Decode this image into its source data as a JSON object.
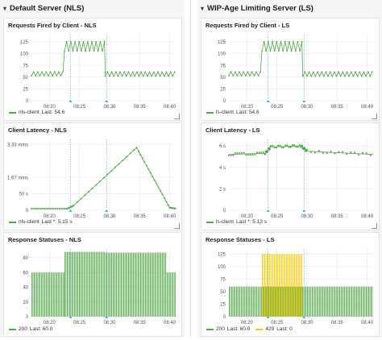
{
  "colors": {
    "green": "#56a64b",
    "yellow": "#f2cc0c",
    "marker": "#4aa5e0",
    "grid": "#ececec",
    "axis": "#555555"
  },
  "left": {
    "row_title": "Default Server (NLS)",
    "panels": [
      {
        "title": "Requests Fired by Client - NLS",
        "legend": [
          {
            "name": "nls-client",
            "last_label": "Last: 54.6",
            "color": "#56a64b"
          }
        ]
      },
      {
        "title": "Client Latency - NLS",
        "legend": [
          {
            "name": "nls-client",
            "last_label": "Last *: 5.15 s",
            "color": "#56a64b"
          }
        ]
      },
      {
        "title": "Response Statuses - NLS",
        "legend": [
          {
            "name": "200",
            "last_label": "Last: 60.0",
            "color": "#56a64b"
          }
        ]
      }
    ]
  },
  "right": {
    "row_title": "WIP-Age Limiting Server (LS)",
    "panels": [
      {
        "title": "Requests Fired by Client - LS",
        "legend": [
          {
            "name": "ls-client",
            "last_label": "Last: 54.6",
            "color": "#56a64b"
          }
        ]
      },
      {
        "title": "Client Latency - LS",
        "legend": [
          {
            "name": "ls-client",
            "last_label": "Last *: 5.13 s",
            "color": "#56a64b"
          }
        ]
      },
      {
        "title": "Response Statuses - LS",
        "legend": [
          {
            "name": "200",
            "last_label": "Last: 60.0",
            "color": "#56a64b"
          },
          {
            "name": "429",
            "last_label": "Last: 0",
            "color": "#f2cc0c"
          }
        ]
      }
    ]
  },
  "chart_data": [
    {
      "id": "req-nls",
      "type": "line",
      "title": "Requests Fired by Client - NLS",
      "x_ticks": [
        "08:20",
        "08:25",
        "08:30",
        "08:35",
        "08:40"
      ],
      "x_range": [
        0,
        24
      ],
      "y_ticks": [
        "0",
        "25",
        "50",
        "75",
        "100",
        "125"
      ],
      "ylim": [
        0,
        140
      ],
      "series": [
        {
          "name": "nls-client",
          "color": "#56a64b",
          "segments": [
            {
              "x0": 0,
              "x1": 5.5,
              "low": 53,
              "high": 61
            },
            {
              "x0": 5.5,
              "x1": 12.3,
              "low": 105,
              "high": 125
            },
            {
              "x0": 12.3,
              "x1": 24,
              "low": 52,
              "high": 61
            }
          ],
          "last": 54.6
        }
      ],
      "markers": [
        6.5,
        12.5
      ]
    },
    {
      "id": "lat-nls",
      "type": "line",
      "title": "Client Latency - NLS",
      "x_ticks": [
        "08:20",
        "08:25",
        "08:30",
        "08:35",
        "08:40"
      ],
      "x_range": [
        0,
        24
      ],
      "y_ticks": [
        "0",
        "50 s",
        "1.67 mins",
        "3.33 mins"
      ],
      "y_values": [
        0,
        50,
        100,
        200
      ],
      "ylim": [
        0,
        215
      ],
      "series": [
        {
          "name": "nls-client",
          "color": "#56a64b",
          "points": [
            [
              0,
              5
            ],
            [
              6,
              5
            ],
            [
              7,
              14
            ],
            [
              17.5,
              190
            ],
            [
              23,
              8
            ],
            [
              24,
              5
            ]
          ],
          "last": 5.15
        }
      ],
      "markers": [
        6.5,
        12.5
      ]
    },
    {
      "id": "stat-nls",
      "type": "bar",
      "title": "Response Statuses - NLS",
      "x_ticks": [
        "08:20",
        "08:25",
        "08:30",
        "08:35",
        "08:40"
      ],
      "x_range": [
        0,
        24
      ],
      "y_ticks": [
        "0",
        "20",
        "40",
        "60",
        "80"
      ],
      "ylim": [
        0,
        92
      ],
      "series": [
        {
          "name": "200",
          "color": "#56a64b",
          "segments": [
            {
              "x0": 0,
              "x1": 5.5,
              "value": 60
            },
            {
              "x0": 5.5,
              "x1": 12.3,
              "value": 88
            },
            {
              "x0": 12.3,
              "x1": 22.5,
              "value": 87
            },
            {
              "x0": 22.5,
              "x1": 24,
              "value": 60
            }
          ],
          "last": 60.0
        }
      ],
      "markers": [
        6.5,
        12.5
      ]
    },
    {
      "id": "req-ls",
      "type": "line",
      "title": "Requests Fired by Client - LS",
      "x_ticks": [
        "08:20",
        "08:25",
        "08:30",
        "08:35",
        "08:40"
      ],
      "x_range": [
        0,
        24
      ],
      "y_ticks": [
        "0",
        "25",
        "50",
        "75",
        "100",
        "125"
      ],
      "ylim": [
        0,
        140
      ],
      "series": [
        {
          "name": "ls-client",
          "color": "#56a64b",
          "segments": [
            {
              "x0": 0,
              "x1": 5.5,
              "low": 53,
              "high": 61
            },
            {
              "x0": 5.5,
              "x1": 12.3,
              "low": 105,
              "high": 125
            },
            {
              "x0": 12.3,
              "x1": 24,
              "low": 52,
              "high": 61
            }
          ],
          "last": 54.6
        }
      ],
      "markers": [
        6.5,
        12.5
      ]
    },
    {
      "id": "lat-ls",
      "type": "line",
      "title": "Client Latency - LS",
      "x_ticks": [
        "08:20",
        "08:25",
        "08:30",
        "08:35",
        "08:40"
      ],
      "x_range": [
        0,
        24
      ],
      "y_ticks": [
        "0",
        "2 s",
        "4 s",
        "6 s"
      ],
      "y_values": [
        0,
        2,
        4,
        6
      ],
      "ylim": [
        0,
        6.6
      ],
      "series": [
        {
          "name": "ls-client",
          "color": "#56a64b",
          "points": [
            [
              0,
              5.2
            ],
            [
              6,
              5.3
            ],
            [
              7,
              5.9
            ],
            [
              12,
              6.0
            ],
            [
              13,
              5.5
            ],
            [
              24,
              5.2
            ]
          ],
          "last": 5.13
        }
      ],
      "markers": [
        6.5,
        12.5
      ]
    },
    {
      "id": "stat-ls",
      "type": "bar",
      "title": "Response Statuses - LS",
      "x_ticks": [
        "08:20",
        "08:25",
        "08:30",
        "08:35",
        "08:40"
      ],
      "x_range": [
        0,
        24
      ],
      "y_ticks": [
        "0",
        "25",
        "50",
        "75",
        "100",
        "125"
      ],
      "ylim": [
        0,
        135
      ],
      "series": [
        {
          "name": "200",
          "color": "#56a64b",
          "segments": [
            {
              "x0": 0,
              "x1": 24,
              "value": 60
            }
          ],
          "last": 60.0
        },
        {
          "name": "429",
          "color": "#f2cc0c",
          "segments": [
            {
              "x0": 5.5,
              "x1": 12.3,
              "value": 125
            }
          ],
          "last": 0
        }
      ],
      "markers": [
        6.5,
        12.5
      ]
    }
  ]
}
